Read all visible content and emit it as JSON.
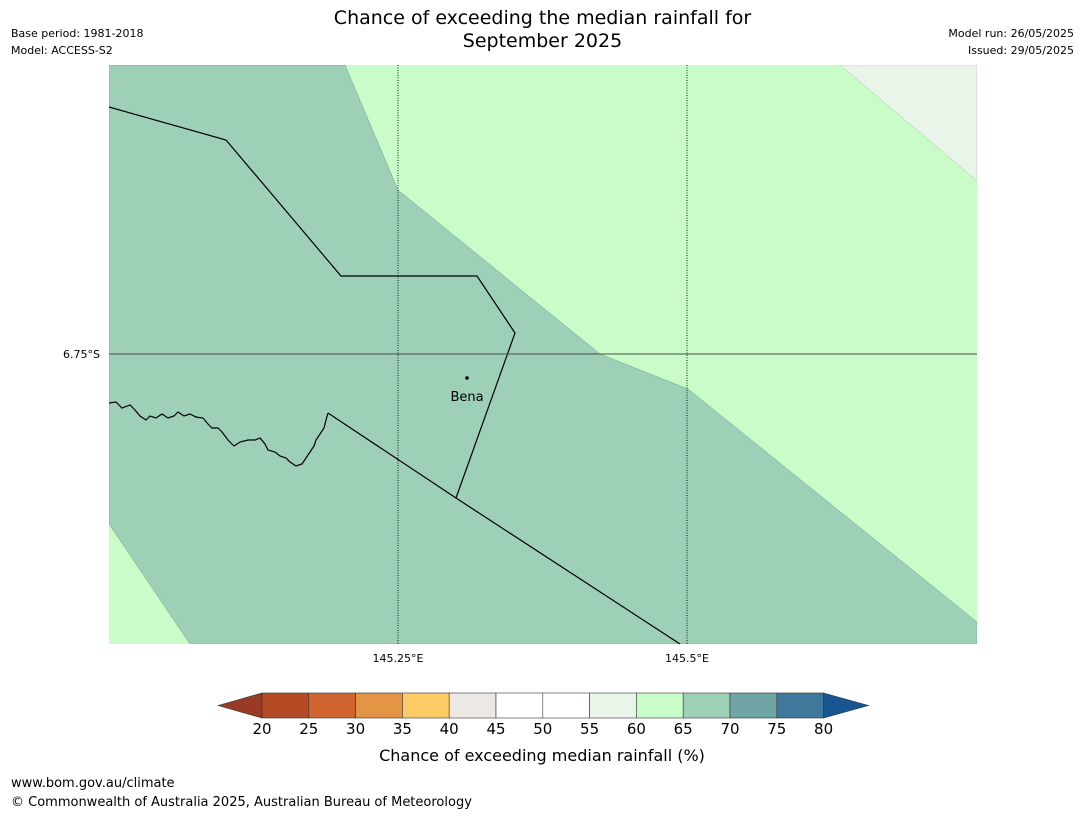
{
  "header": {
    "title_line1": "Chance of exceeding the median rainfall for",
    "title_line2": "September 2025",
    "base_period": "Base period: 1981-2018",
    "model": "Model: ACCESS-S2",
    "model_run": "Model run: 26/05/2025",
    "issued": "Issued: 29/05/2025"
  },
  "map": {
    "lat_label": "6.75°S",
    "lon_labels": [
      "145.25°E",
      "145.5°E"
    ],
    "place": "Bena",
    "fill_colors": {
      "band_55_60": "#e9f5e9",
      "band_60_65": "#c9fcc9",
      "band_65_70": "#9ed0b8"
    }
  },
  "colorbar": {
    "ticks": [
      "20",
      "25",
      "30",
      "35",
      "40",
      "45",
      "50",
      "55",
      "60",
      "65",
      "70",
      "75",
      "80"
    ],
    "colors": [
      "#9a3a24",
      "#b44b24",
      "#cf6430",
      "#e39444",
      "#fecb66",
      "#ede8e5",
      "#ffffff",
      "#ffffff",
      "#e9f5e9",
      "#c9fcc9",
      "#9ed0b8",
      "#6fa5a7",
      "#40789b",
      "#175490"
    ],
    "label": "Chance of exceeding median rainfall (%)"
  },
  "footer": {
    "url": "www.bom.gov.au/climate",
    "copyright": "© Commonwealth of Australia 2025, Australian Bureau of Meteorology"
  }
}
